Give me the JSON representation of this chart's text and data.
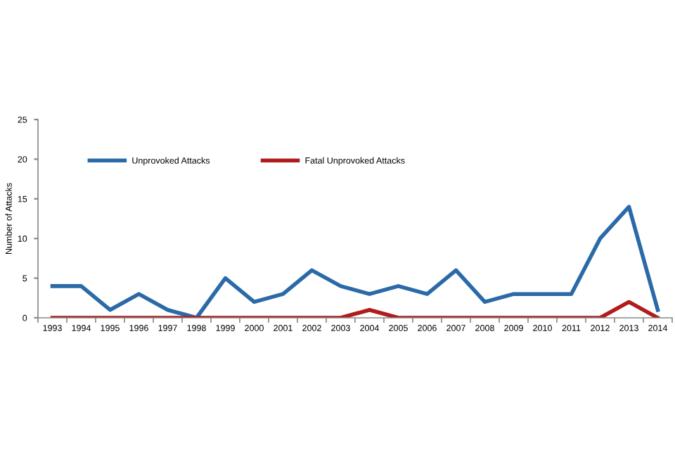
{
  "chart_data": {
    "type": "line",
    "ylabel": "Number of Attacks",
    "categories": [
      "1993",
      "1994",
      "1995",
      "1996",
      "1997",
      "1998",
      "1999",
      "2000",
      "2001",
      "2002",
      "2003",
      "2004",
      "2005",
      "2006",
      "2007",
      "2008",
      "2009",
      "2010",
      "2011",
      "2012",
      "2013",
      "2014"
    ],
    "series": [
      {
        "name": "Unprovoked Attacks",
        "color": "#2a6aa8",
        "values": [
          4,
          4,
          1,
          3,
          1,
          0,
          5,
          2,
          3,
          6,
          4,
          3,
          4,
          3,
          6,
          2,
          3,
          3,
          3,
          10,
          14,
          1
        ]
      },
      {
        "name": "Fatal Unprovoked Attacks",
        "color": "#b01c1c",
        "values": [
          0,
          0,
          0,
          0,
          0,
          0,
          0,
          0,
          0,
          0,
          0,
          1,
          0,
          0,
          0,
          0,
          0,
          0,
          0,
          0,
          2,
          0
        ]
      }
    ],
    "ylim": [
      0,
      25
    ],
    "yticks": [
      0,
      5,
      10,
      15,
      20,
      25
    ],
    "grid": false,
    "legend": "top",
    "marker": "none",
    "line_style": "solid"
  }
}
